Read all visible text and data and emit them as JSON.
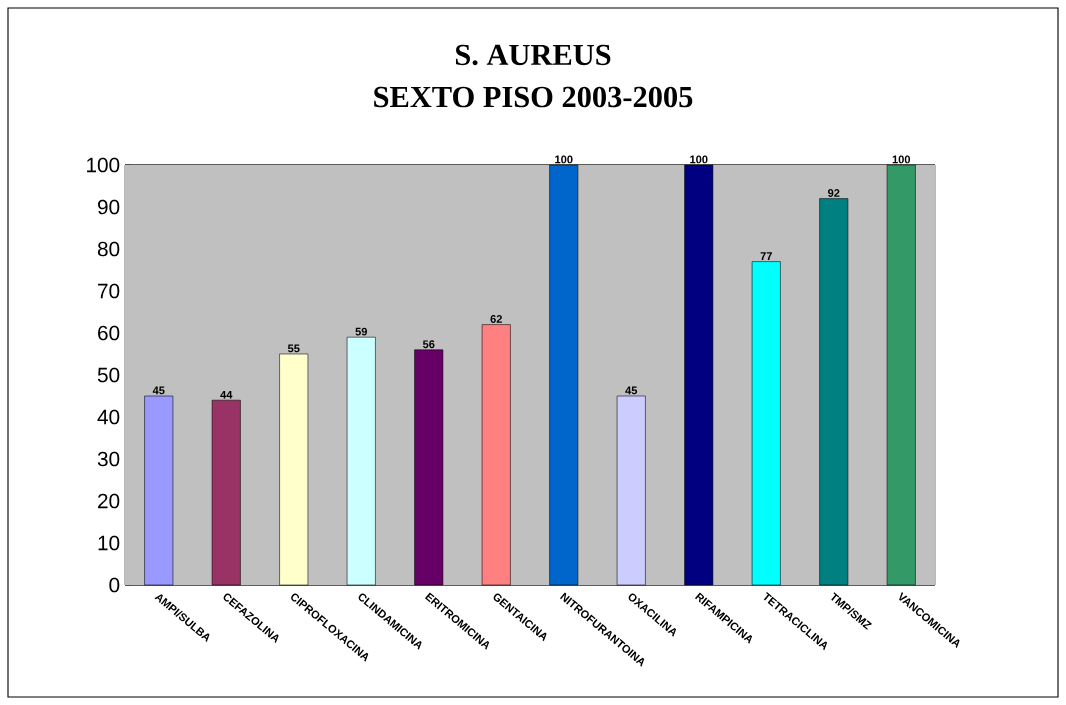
{
  "chart_data": {
    "type": "bar",
    "title": "S. AUREUS",
    "subtitle": "SEXTO PISO 2003-2005",
    "categories": [
      "AMPI/SULBA",
      "CEFAZOLINA",
      "CIPROFLOXACINA",
      "CLINDAMICINA",
      "ERITROMICINA",
      "GENTAICINA",
      "NITROFURANTOINA",
      "OXACILINA",
      "RIFAMPICINA",
      "TETRACICLINA",
      "TMP/SMZ",
      "VANCOMICINA"
    ],
    "values": [
      45,
      44,
      55,
      59,
      56,
      62,
      100,
      45,
      100,
      77,
      92,
      100
    ],
    "colors": [
      "#9999ff",
      "#993366",
      "#ffffcc",
      "#ccffff",
      "#660066",
      "#ff8080",
      "#0066cc",
      "#ccccff",
      "#000080",
      "#00ffff",
      "#008080",
      "#339966"
    ],
    "ylim": [
      0,
      100
    ],
    "yticks": [
      0,
      10,
      20,
      30,
      40,
      50,
      60,
      70,
      80,
      90,
      100
    ],
    "grid": "y",
    "data_labels": true
  }
}
